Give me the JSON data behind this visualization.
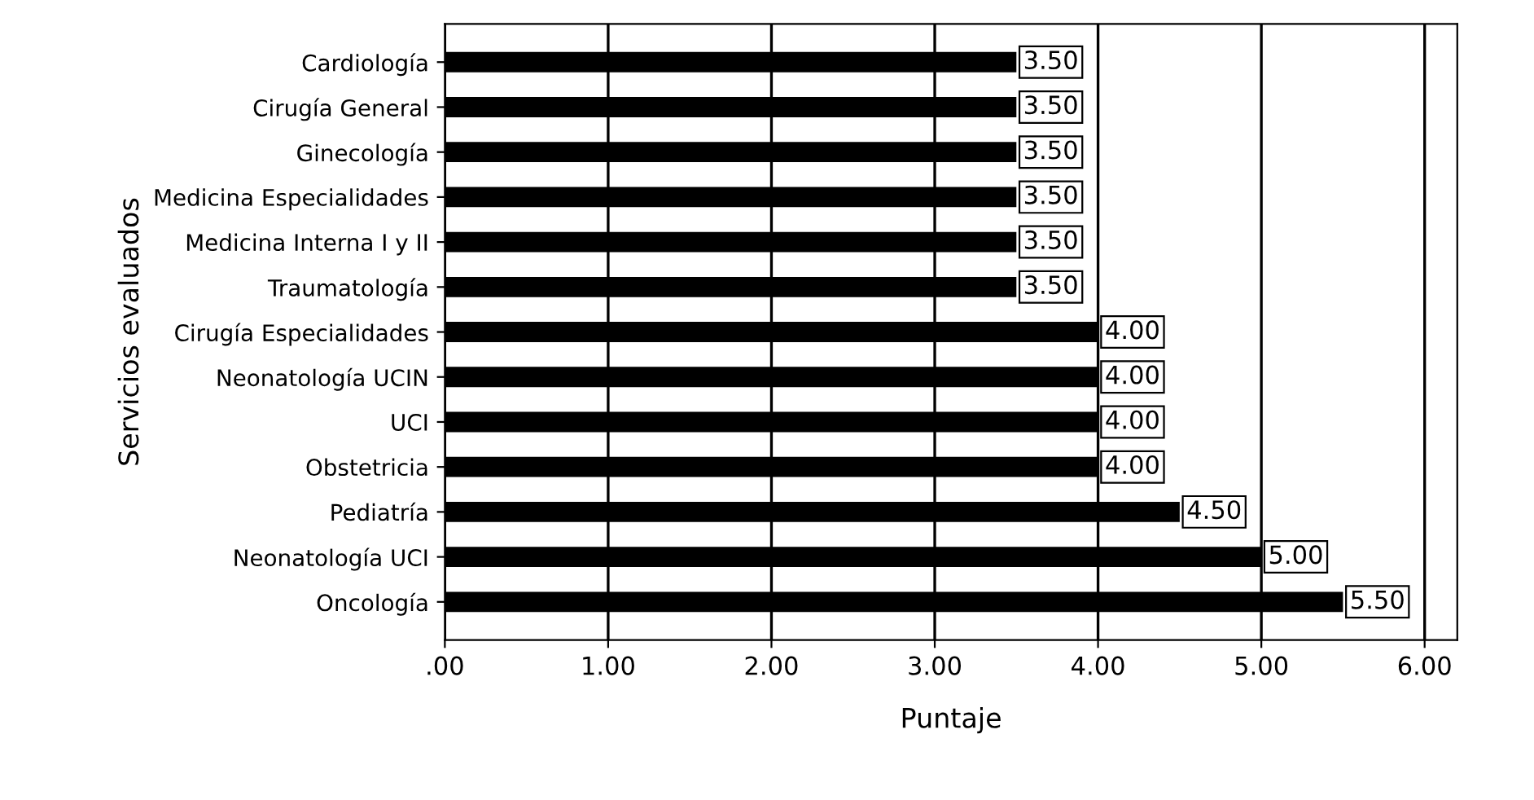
{
  "chart_data": {
    "type": "bar",
    "orientation": "horizontal",
    "xlabel": "Puntaje",
    "ylabel": "Servicios evaluados",
    "categories": [
      "Cardiología",
      "Cirugía General",
      "Ginecología",
      "Medicina Especialidades",
      "Medicina Interna I y II",
      "Traumatología",
      "Cirugía Especialidades",
      "Neonatología UCIN",
      "UCI",
      "Obstetricia",
      "Pediatría",
      "Neonatología UCI",
      "Oncología"
    ],
    "values": [
      3.5,
      3.5,
      3.5,
      3.5,
      3.5,
      3.5,
      4.0,
      4.0,
      4.0,
      4.0,
      4.5,
      5.0,
      5.5
    ],
    "value_labels": [
      "3.50",
      "3.50",
      "3.50",
      "3.50",
      "3.50",
      "3.50",
      "4.00",
      "4.00",
      "4.00",
      "4.00",
      "4.50",
      "5.00",
      "5.50"
    ],
    "color": "#000000",
    "xlim": [
      0,
      6.2
    ],
    "xticks": [
      {
        "value": 0,
        "label": ".00"
      },
      {
        "value": 1,
        "label": "1.00"
      },
      {
        "value": 2,
        "label": "2.00"
      },
      {
        "value": 3,
        "label": "3.00"
      },
      {
        "value": 4,
        "label": "4.00"
      },
      {
        "value": 5,
        "label": "5.00"
      },
      {
        "value": 6,
        "label": "6.00"
      }
    ],
    "grid": "x"
  }
}
